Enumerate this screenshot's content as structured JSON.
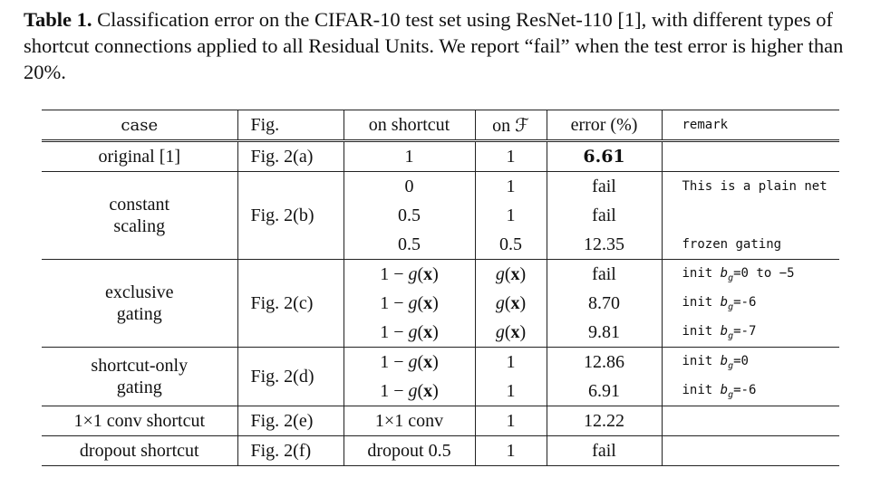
{
  "caption": {
    "label": "Table 1.",
    "text": " Classification error on the CIFAR-10 test set using ResNet-110 [1], with different types of shortcut connections applied to all Residual Units. We report “fail” when the test error is higher than 20%."
  },
  "table": {
    "headers": [
      "case",
      "Fig.",
      "on shortcut",
      "on ℱ",
      "error (%)",
      "remark"
    ],
    "groups": [
      {
        "case": "original [1]",
        "fig": "Fig. 2(a)",
        "rows": [
          {
            "shortcut": "1",
            "f": "1",
            "error": "6.61",
            "remark": ""
          }
        ]
      },
      {
        "case_lines": [
          "constant",
          "scaling"
        ],
        "fig": "Fig. 2(b)",
        "rows": [
          {
            "shortcut": "0",
            "f": "1",
            "error": "fail",
            "remark": "This is a plain net"
          },
          {
            "shortcut": "0.5",
            "f": "1",
            "error": "fail",
            "remark": ""
          },
          {
            "shortcut": "0.5",
            "f": "0.5",
            "error": "12.35",
            "remark": "frozen gating"
          }
        ]
      },
      {
        "case_lines": [
          "exclusive",
          "gating"
        ],
        "fig": "Fig. 2(c)",
        "rows": [
          {
            "shortcut": "1 − g(x)",
            "f": "g(x)",
            "error": "fail",
            "remark": "init b_g=0 to −5"
          },
          {
            "shortcut": "1 − g(x)",
            "f": "g(x)",
            "error": "8.70",
            "remark": "init b_g=-6"
          },
          {
            "shortcut": "1 − g(x)",
            "f": "g(x)",
            "error": "9.81",
            "remark": "init b_g=-7"
          }
        ]
      },
      {
        "case_lines": [
          "shortcut-only",
          "gating"
        ],
        "fig": "Fig. 2(d)",
        "rows": [
          {
            "shortcut": "1 − g(x)",
            "f": "1",
            "error": "12.86",
            "remark": "init b_g=0"
          },
          {
            "shortcut": "1 − g(x)",
            "f": "1",
            "error": "6.91",
            "remark": "init b_g=-6"
          }
        ]
      },
      {
        "case": "1×1 conv shortcut",
        "fig": "Fig. 2(e)",
        "rows": [
          {
            "shortcut": "1×1 conv",
            "f": "1",
            "error": "12.22",
            "remark": ""
          }
        ]
      },
      {
        "case": "dropout shortcut",
        "fig": "Fig. 2(f)",
        "rows": [
          {
            "shortcut": "dropout 0.5",
            "f": "1",
            "error": "fail",
            "remark": ""
          }
        ]
      }
    ]
  }
}
